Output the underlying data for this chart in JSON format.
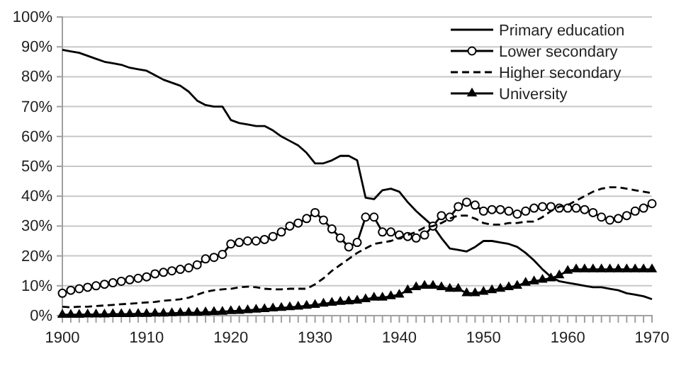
{
  "chart_data": {
    "type": "line",
    "x": [
      1900,
      1901,
      1902,
      1903,
      1904,
      1905,
      1906,
      1907,
      1908,
      1909,
      1910,
      1911,
      1912,
      1913,
      1914,
      1915,
      1916,
      1917,
      1918,
      1919,
      1920,
      1921,
      1922,
      1923,
      1924,
      1925,
      1926,
      1927,
      1928,
      1929,
      1930,
      1931,
      1932,
      1933,
      1934,
      1935,
      1936,
      1937,
      1938,
      1939,
      1940,
      1941,
      1942,
      1943,
      1944,
      1945,
      1946,
      1947,
      1948,
      1949,
      1950,
      1951,
      1952,
      1953,
      1954,
      1955,
      1956,
      1957,
      1958,
      1959,
      1960,
      1961,
      1962,
      1963,
      1964,
      1965,
      1966,
      1967,
      1968,
      1969,
      1970
    ],
    "series": [
      {
        "name": "Primary education",
        "color": "#000000",
        "line_style": "solid",
        "marker": "none",
        "values": [
          89,
          88.5,
          88,
          87,
          86,
          85,
          84.5,
          84,
          83,
          82.5,
          82,
          80.5,
          79,
          78,
          77,
          75,
          72,
          70.5,
          70,
          70,
          65.5,
          64.5,
          64,
          63.5,
          63.5,
          62,
          60,
          58.5,
          57,
          54.5,
          51,
          51,
          52,
          53.5,
          53.5,
          52,
          39.5,
          39,
          42,
          42.5,
          41.5,
          38,
          35,
          32.5,
          30,
          26,
          22.5,
          22,
          21.5,
          23,
          25,
          25,
          24.5,
          24,
          23,
          21,
          18.5,
          15.5,
          13,
          11.5,
          11,
          10.5,
          10,
          9.5,
          9.5,
          9,
          8.5,
          7.5,
          7,
          6.5,
          5.5
        ]
      },
      {
        "name": "Lower secondary",
        "color": "#000000",
        "line_style": "solid",
        "marker": "circle",
        "values": [
          7.5,
          8.5,
          9,
          9.5,
          10,
          10.5,
          11,
          11.5,
          12,
          12.5,
          13,
          14,
          14.5,
          15,
          15.5,
          16,
          17,
          19,
          19.5,
          20.5,
          24,
          24.5,
          25,
          25,
          25.5,
          26.5,
          28,
          30,
          31,
          32.5,
          34.5,
          32,
          29,
          26,
          23,
          24.5,
          33,
          33,
          28,
          28,
          27,
          26.5,
          26,
          27,
          30,
          33.5,
          33,
          36.5,
          38,
          37,
          35,
          35.5,
          35.5,
          35,
          34,
          35,
          36,
          36.5,
          36.5,
          36,
          36,
          36,
          35.5,
          34.5,
          33,
          32,
          32.5,
          33.5,
          35,
          36,
          37.5
        ]
      },
      {
        "name": "Higher secondary",
        "color": "#000000",
        "line_style": "dashed",
        "marker": "none",
        "values": [
          3,
          2.8,
          3,
          3,
          3.2,
          3.4,
          3.6,
          3.8,
          4,
          4.2,
          4.4,
          4.6,
          5,
          5.2,
          5.5,
          6,
          7,
          8,
          8.5,
          8.8,
          9,
          9.5,
          9.7,
          9.5,
          9,
          8.8,
          8.8,
          9,
          9,
          9,
          10.5,
          12.5,
          15,
          17,
          19,
          21,
          22.5,
          24,
          24.5,
          25,
          26,
          27,
          28,
          29.5,
          30,
          31,
          32.5,
          33.5,
          33.5,
          32.5,
          31,
          30.5,
          30.5,
          31,
          31,
          31.5,
          31.5,
          33,
          35,
          36.5,
          37,
          38.5,
          40,
          41.5,
          42.5,
          43,
          43,
          42.5,
          42,
          41.5,
          41
        ]
      },
      {
        "name": "University",
        "color": "#000000",
        "line_style": "solid",
        "marker": "triangle",
        "values": [
          0.3,
          0.3,
          0.3,
          0.4,
          0.4,
          0.4,
          0.5,
          0.5,
          0.5,
          0.6,
          0.6,
          0.7,
          0.7,
          0.8,
          0.9,
          1,
          1,
          1.1,
          1.2,
          1.3,
          1.5,
          1.6,
          1.8,
          2,
          2.2,
          2.4,
          2.6,
          2.8,
          3,
          3.3,
          3.6,
          4,
          4.3,
          4.6,
          4.8,
          5,
          5.5,
          6,
          6,
          6.5,
          7,
          8.5,
          9.5,
          10,
          10,
          9.5,
          9,
          9,
          7.5,
          7.5,
          8,
          8.5,
          9,
          9.5,
          10,
          11,
          11.5,
          12,
          12.5,
          13.5,
          15,
          15.5,
          15.5,
          15.5,
          15.5,
          15.5,
          15.5,
          15.5,
          15.5,
          15.5,
          15.5
        ]
      }
    ],
    "xlim": [
      1900,
      1970
    ],
    "xticks": [
      1900,
      {
        "value": 1901,
        "label": null
      },
      {
        "value": 1902,
        "label": null
      },
      {
        "value": 1903,
        "label": null
      },
      {
        "value": 1904,
        "label": null
      },
      {
        "value": 1905,
        "label": null
      },
      {
        "value": 1906,
        "label": null
      },
      {
        "value": 1907,
        "label": null
      },
      {
        "value": 1908,
        "label": null
      },
      {
        "value": 1909,
        "label": null
      },
      1910,
      {
        "value": 1911,
        "label": null
      },
      {
        "value": 1912,
        "label": null
      },
      {
        "value": 1913,
        "label": null
      },
      {
        "value": 1914,
        "label": null
      },
      {
        "value": 1915,
        "label": null
      },
      {
        "value": 1916,
        "label": null
      },
      {
        "value": 1917,
        "label": null
      },
      {
        "value": 1918,
        "label": null
      },
      {
        "value": 1919,
        "label": null
      },
      1920,
      {
        "value": 1921,
        "label": null
      },
      {
        "value": 1922,
        "label": null
      },
      {
        "value": 1923,
        "label": null
      },
      {
        "value": 1924,
        "label": null
      },
      {
        "value": 1925,
        "label": null
      },
      {
        "value": 1926,
        "label": null
      },
      {
        "value": 1927,
        "label": null
      },
      {
        "value": 1928,
        "label": null
      },
      {
        "value": 1929,
        "label": null
      },
      1930,
      {
        "value": 1931,
        "label": null
      },
      {
        "value": 1932,
        "label": null
      },
      {
        "value": 1933,
        "label": null
      },
      {
        "value": 1934,
        "label": null
      },
      {
        "value": 1935,
        "label": null
      },
      {
        "value": 1936,
        "label": null
      },
      {
        "value": 1937,
        "label": null
      },
      {
        "value": 1938,
        "label": null
      },
      {
        "value": 1939,
        "label": null
      },
      1940,
      {
        "value": 1941,
        "label": null
      },
      {
        "value": 1942,
        "label": null
      },
      {
        "value": 1943,
        "label": null
      },
      {
        "value": 1944,
        "label": null
      },
      {
        "value": 1945,
        "label": null
      },
      {
        "value": 1946,
        "label": null
      },
      {
        "value": 1947,
        "label": null
      },
      {
        "value": 1948,
        "label": null
      },
      {
        "value": 1949,
        "label": null
      },
      1950,
      {
        "value": 1951,
        "label": null
      },
      {
        "value": 1952,
        "label": null
      },
      {
        "value": 1953,
        "label": null
      },
      {
        "value": 1954,
        "label": null
      },
      {
        "value": 1955,
        "label": null
      },
      {
        "value": 1956,
        "label": null
      },
      {
        "value": 1957,
        "label": null
      },
      {
        "value": 1958,
        "label": null
      },
      {
        "value": 1959,
        "label": null
      },
      1960,
      {
        "value": 1961,
        "label": null
      },
      {
        "value": 1962,
        "label": null
      },
      {
        "value": 1963,
        "label": null
      },
      {
        "value": 1964,
        "label": null
      },
      {
        "value": 1965,
        "label": null
      },
      {
        "value": 1966,
        "label": null
      },
      {
        "value": 1967,
        "label": null
      },
      {
        "value": 1968,
        "label": null
      },
      {
        "value": 1969,
        "label": null
      },
      1970
    ],
    "ylim": [
      0,
      100
    ],
    "yticks": [
      {
        "value": 0,
        "label": "0%"
      },
      {
        "value": 10,
        "label": "10%"
      },
      {
        "value": 20,
        "label": "20%"
      },
      {
        "value": 30,
        "label": "30%"
      },
      {
        "value": 40,
        "label": "40%"
      },
      {
        "value": 50,
        "label": "50%"
      },
      {
        "value": 60,
        "label": "60%"
      },
      {
        "value": 70,
        "label": "70%"
      },
      {
        "value": 80,
        "label": "80%"
      },
      {
        "value": 90,
        "label": "90%"
      },
      {
        "value": 100,
        "label": "100%"
      }
    ],
    "grid": "y",
    "legend": "top right"
  }
}
